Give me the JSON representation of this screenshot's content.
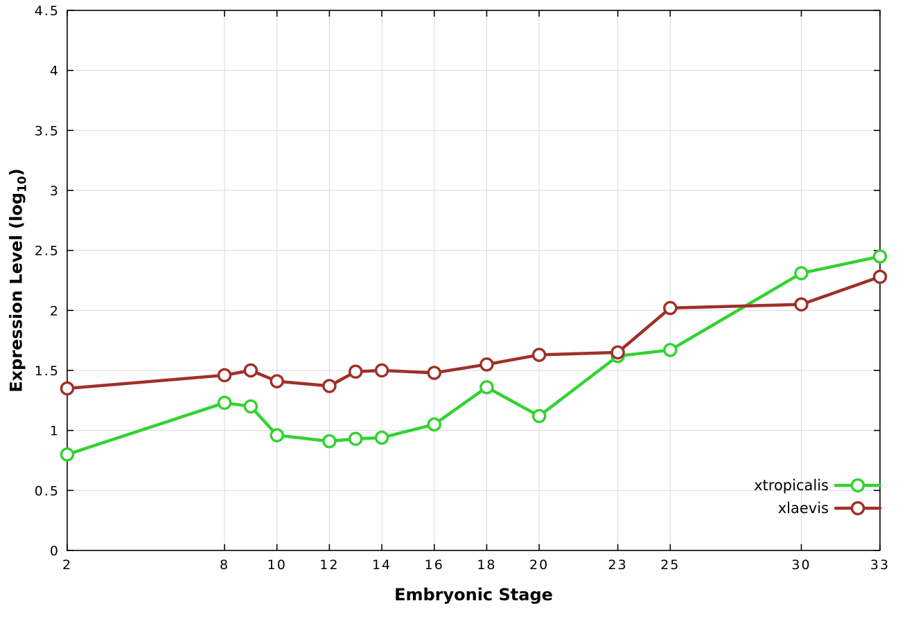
{
  "chart_data": {
    "type": "line",
    "title": "",
    "xlabel": "Embryonic Stage",
    "ylabel": "Expression Level (log10)",
    "ylabel_parts": {
      "prefix": "Expression Level (log",
      "sub": "10",
      "suffix": ")"
    },
    "xlim": [
      2,
      33
    ],
    "ylim": [
      0,
      4.5
    ],
    "x_ticks": [
      2,
      8,
      10,
      12,
      14,
      16,
      18,
      20,
      23,
      25,
      30,
      33
    ],
    "y_ticks": [
      0,
      0.5,
      1,
      1.5,
      2,
      2.5,
      3,
      3.5,
      4,
      4.5
    ],
    "grid": true,
    "legend_position": "bottom-right",
    "x": [
      2,
      8,
      9,
      10,
      12,
      13,
      14,
      16,
      18,
      20,
      23,
      25,
      30,
      33
    ],
    "series": [
      {
        "name": "xtropicalis",
        "color": "#32d232",
        "values": [
          0.8,
          1.23,
          1.2,
          0.96,
          0.91,
          0.93,
          0.94,
          1.05,
          1.36,
          1.12,
          1.62,
          1.67,
          2.31,
          2.45
        ]
      },
      {
        "name": "xlaevis",
        "color": "#a03028",
        "values": [
          1.35,
          1.46,
          1.5,
          1.41,
          1.37,
          1.49,
          1.5,
          1.48,
          1.55,
          1.63,
          1.65,
          2.02,
          2.05,
          2.28
        ]
      }
    ],
    "colors": {
      "grid": "#d9d9d9",
      "axis": "#000000",
      "background": "#ffffff"
    }
  }
}
